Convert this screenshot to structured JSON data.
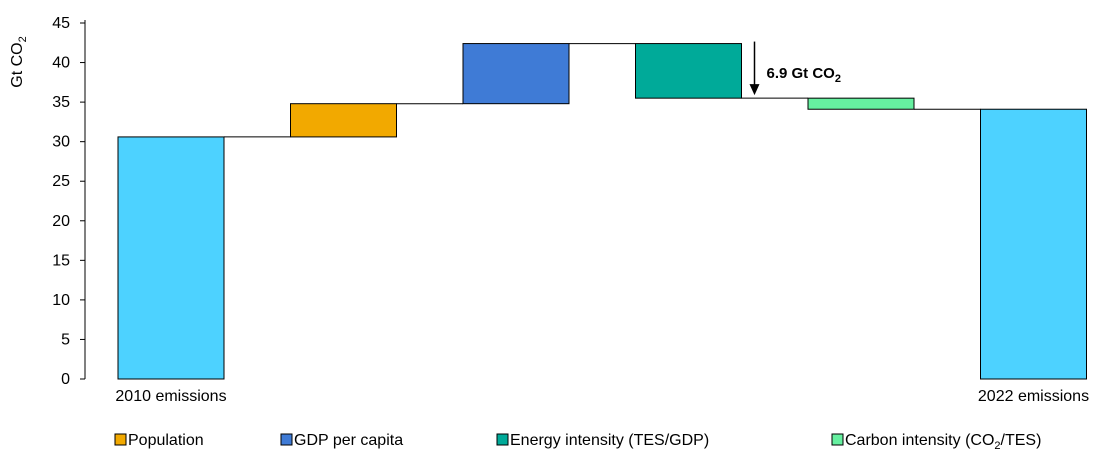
{
  "chart_data": {
    "type": "bar",
    "subtype": "waterfall",
    "ylabel": "Gt CO",
    "ylabel_sub": "2",
    "ylim": [
      0,
      45
    ],
    "yticks": [
      0,
      5,
      10,
      15,
      20,
      25,
      30,
      35,
      40,
      45
    ],
    "grid": false,
    "legend_position": "bottom",
    "steps": [
      {
        "label": "2010 emissions",
        "kind": "total",
        "value": 30.6,
        "color": "#4DD2FF"
      },
      {
        "label": "",
        "series": "Population",
        "kind": "delta",
        "value": 4.2,
        "color": "#F2A900"
      },
      {
        "label": "",
        "series": "GDP per capita",
        "kind": "delta",
        "value": 7.6,
        "color": "#3F7BD6"
      },
      {
        "label": "",
        "series": "Energy intensity (TES/GDP)",
        "kind": "delta",
        "value": -6.9,
        "color": "#00AA99"
      },
      {
        "label": "",
        "series": "Carbon intensity (CO2/TES)",
        "kind": "delta",
        "value": -1.4,
        "color": "#66F0A0"
      },
      {
        "label": "2022 emissions",
        "kind": "total",
        "value": 34.1,
        "color": "#4DD2FF"
      }
    ],
    "annotation": {
      "text": "6.9 Gt CO",
      "sub": "2",
      "step_index": 3
    },
    "legend": [
      {
        "text": "Population",
        "sub": "",
        "tail": "",
        "color": "#F2A900"
      },
      {
        "text": "GDP per capita",
        "sub": "",
        "tail": "",
        "color": "#3F7BD6"
      },
      {
        "text": "Energy intensity (TES/GDP)",
        "sub": "",
        "tail": "",
        "color": "#00AA99"
      },
      {
        "text": "Carbon intensity (CO",
        "sub": "2",
        "tail": "/TES)",
        "color": "#66F0A0"
      }
    ]
  }
}
